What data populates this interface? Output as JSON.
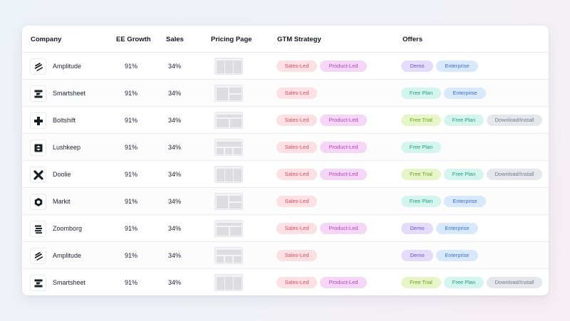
{
  "headers": {
    "company": "Company",
    "ee_growth": "EE Growth",
    "sales": "Sales",
    "pricing_page": "Pricing Page",
    "gtm_strategy": "GTM Strategy",
    "offers": "Offers"
  },
  "rows": [
    {
      "company": "Amplitude",
      "icon": "amplitude-logo-icon",
      "ee_growth": "91%",
      "sales": "34%",
      "thumb": "a",
      "gtm": [
        "Sales-Led",
        "Product-Led"
      ],
      "offers": [
        "Demo",
        "Enterprise"
      ]
    },
    {
      "company": "Smartsheet",
      "icon": "smartsheet-logo-icon",
      "ee_growth": "91%",
      "sales": "34%",
      "thumb": "b",
      "gtm": [
        "Sales-Led"
      ],
      "offers": [
        "Free Plan",
        "Enterprise"
      ]
    },
    {
      "company": "Boltshift",
      "icon": "boltshift-logo-icon",
      "ee_growth": "91%",
      "sales": "34%",
      "thumb": "c",
      "gtm": [
        "Sales-Led",
        "Product-Led"
      ],
      "offers": [
        "Free Trial",
        "Free Plan",
        "Download/Install"
      ]
    },
    {
      "company": "Lushkeep",
      "icon": "lushkeep-logo-icon",
      "ee_growth": "91%",
      "sales": "34%",
      "thumb": "d",
      "gtm": [
        "Sales-Led",
        "Product-Led"
      ],
      "offers": [
        "Free Plan"
      ]
    },
    {
      "company": "Doolie",
      "icon": "doolie-logo-icon",
      "ee_growth": "91%",
      "sales": "34%",
      "thumb": "a",
      "gtm": [
        "Sales-Led",
        "Product-Led"
      ],
      "offers": [
        "Free Trial",
        "Free Plan",
        "Download/Install"
      ]
    },
    {
      "company": "Markit",
      "icon": "markit-logo-icon",
      "ee_growth": "91%",
      "sales": "34%",
      "thumb": "b",
      "gtm": [
        "Sales-Led"
      ],
      "offers": [
        "Free Plan",
        "Enterprise"
      ]
    },
    {
      "company": "Zoomborg",
      "icon": "zoomborg-logo-icon",
      "ee_growth": "91%",
      "sales": "34%",
      "thumb": "c",
      "gtm": [
        "Sales-Led",
        "Product-Led"
      ],
      "offers": [
        "Demo",
        "Enterprise"
      ]
    },
    {
      "company": "Amplitude",
      "icon": "amplitude-logo-icon",
      "ee_growth": "91%",
      "sales": "34%",
      "thumb": "d",
      "gtm": [
        "Sales-Led"
      ],
      "offers": [
        "Demo",
        "Enterprise"
      ]
    },
    {
      "company": "Smartsheet",
      "icon": "smartsheet-logo-icon",
      "ee_growth": "91%",
      "sales": "34%",
      "thumb": "a",
      "gtm": [
        "Sales-Led",
        "Product-Led"
      ],
      "offers": [
        "Free Trial",
        "Free Plan",
        "Download/Install"
      ]
    }
  ],
  "pill_styles": {
    "Sales-Led": "p-sales",
    "Product-Led": "p-product",
    "Demo": "p-demo",
    "Enterprise": "p-enterprise",
    "Free Plan": "p-freeplan",
    "Free Trial": "p-freetrial",
    "Download/Install": "p-download"
  }
}
